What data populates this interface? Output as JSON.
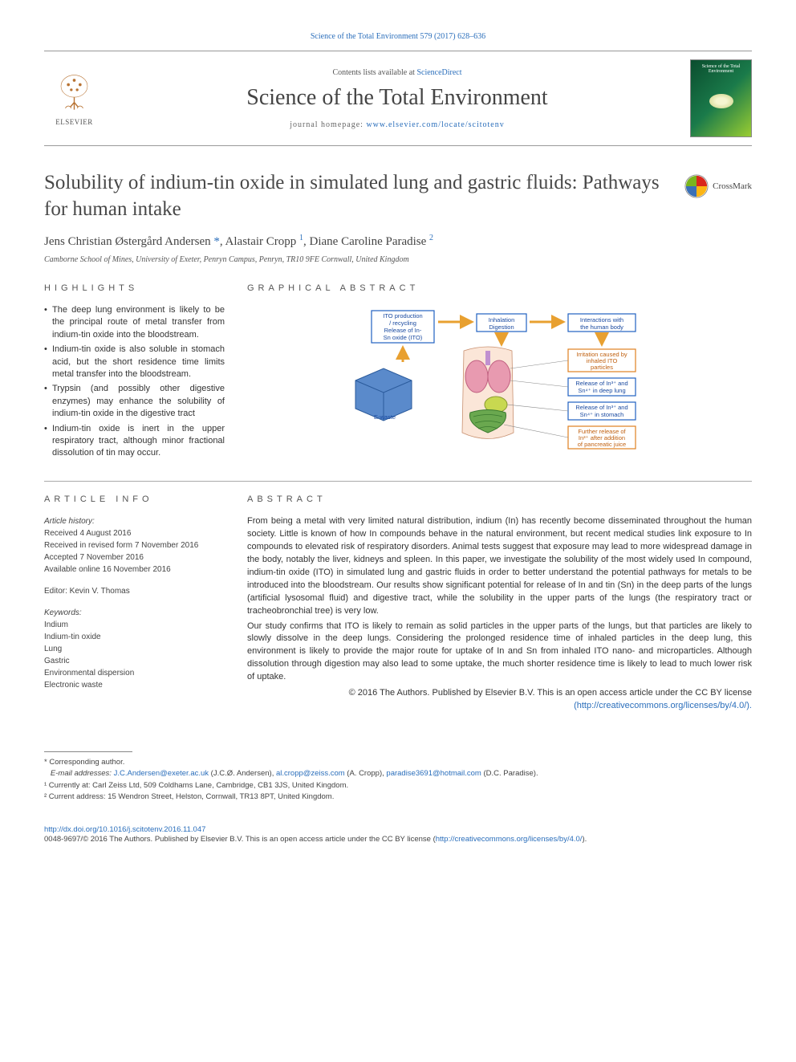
{
  "header": {
    "citation": "Science of the Total Environment 579 (2017) 628–636",
    "contents_prefix": "Contents lists available at ",
    "contents_link": "ScienceDirect",
    "journal": "Science of the Total Environment",
    "homepage_prefix": "journal homepage: ",
    "homepage_url": "www.elsevier.com/locate/scitotenv",
    "publisher": "ELSEVIER",
    "cover_label": "Science of the Total Environment"
  },
  "crossmark": "CrossMark",
  "title": "Solubility of indium-tin oxide in simulated lung and gastric fluids: Pathways for human intake",
  "authors_html": "Jens Christian Østergård Andersen <span class='star'>*</span>, Alastair Cropp <sup>1</sup>, Diane Caroline Paradise <sup>2</sup>",
  "affiliation": "Camborne School of Mines, University of Exeter, Penryn Campus, Penryn, TR10 9FE Cornwall, United Kingdom",
  "sections": {
    "highlights_heading": "HIGHLIGHTS",
    "graphical_heading": "GRAPHICAL ABSTRACT",
    "article_info_heading": "ARTICLE INFO",
    "abstract_heading": "ABSTRACT"
  },
  "highlights": [
    "The deep lung environment is likely to be the principal route of metal transfer from indium-tin oxide into the bloodstream.",
    "Indium-tin oxide is also soluble in stomach acid, but the short residence time limits metal transfer into the bloodstream.",
    "Trypsin (and possibly other digestive enzymes) may enhance the solubility of indium-tin oxide in the digestive tract",
    "Indium-tin oxide is inert in the upper respiratory tract, although minor fractional dissolution of tin may occur."
  ],
  "graphical_abstract": {
    "boxes": {
      "production": [
        "ITO production",
        "/ recycling",
        "Release of In-",
        "Sn oxide (ITO)"
      ],
      "inhalation": [
        "Inhalation",
        "Digestion"
      ],
      "interactions": [
        "Interactions with",
        "the human body"
      ],
      "irritation": [
        "Irritation caused by",
        "inhaled ITO",
        "particles"
      ],
      "release_lung": [
        "Release of In³⁺ and",
        "Sn⁴⁺ in deep lung"
      ],
      "release_stomach": [
        "Release of In³⁺ and",
        "Sn⁴⁺ in stomach"
      ],
      "further": [
        "Further release of",
        "In³⁺ after addition",
        "of pancreatic juice"
      ]
    },
    "organ_labels": [
      "E-waste"
    ],
    "colors": {
      "box_stroke": "#2060c0",
      "box_orange_stroke": "#e08020",
      "text_blue": "#1a4aa0",
      "text_orange": "#c06010",
      "arrow": "#e8a030",
      "lung": "#e89ab0",
      "stomach": "#c8d850",
      "intestine": "#6aa84f",
      "trachea": "#c090d0"
    }
  },
  "article_info": {
    "history_label": "Article history:",
    "history": [
      "Received 4 August 2016",
      "Received in revised form 7 November 2016",
      "Accepted 7 November 2016",
      "Available online 16 November 2016"
    ],
    "editor_label": "Editor: Kevin V. Thomas",
    "keywords_label": "Keywords:",
    "keywords": [
      "Indium",
      "Indium-tin oxide",
      "Lung",
      "Gastric",
      "Environmental dispersion",
      "Electronic waste"
    ]
  },
  "abstract": {
    "p1": "From being a metal with very limited natural distribution, indium (In) has recently become disseminated throughout the human society. Little is known of how In compounds behave in the natural environment, but recent medical studies link exposure to In compounds to elevated risk of respiratory disorders. Animal tests suggest that exposure may lead to more widespread damage in the body, notably the liver, kidneys and spleen. In this paper, we investigate the solubility of the most widely used In compound, indium-tin oxide (ITO) in simulated lung and gastric fluids in order to better understand the potential pathways for metals to be introduced into the bloodstream. Our results show significant potential for release of In and tin (Sn) in the deep parts of the lungs (artificial lysosomal fluid) and digestive tract, while the solubility in the upper parts of the lungs (the respiratory tract or tracheobronchial tree) is very low.",
    "p2": "Our study confirms that ITO is likely to remain as solid particles in the upper parts of the lungs, but that particles are likely to slowly dissolve in the deep lungs. Considering the prolonged residence time of inhaled particles in the deep lung, this environment is likely to provide the major route for uptake of In and Sn from inhaled ITO nano- and microparticles. Although dissolution through digestion may also lead to some uptake, the much shorter residence time is likely to lead to much lower risk of uptake.",
    "copyright": "© 2016 The Authors. Published by Elsevier B.V. This is an open access article under the CC BY license",
    "license_url": "(http://creativecommons.org/licenses/by/4.0/)."
  },
  "footnotes": {
    "corresponding": "* Corresponding author.",
    "emails_label": "E-mail addresses: ",
    "emails": [
      {
        "addr": "J.C.Andersen@exeter.ac.uk",
        "who": " (J.C.Ø. Andersen), "
      },
      {
        "addr": "al.cropp@zeiss.com",
        "who": " (A. Cropp), "
      },
      {
        "addr": "paradise3691@hotmail.com",
        "who": " (D.C. Paradise)."
      }
    ],
    "fn1": "¹ Currently at: Carl Zeiss Ltd, 509 Coldhams Lane, Cambridge, CB1 3JS, United Kingdom.",
    "fn2": "² Current address: 15 Wendron Street, Helston, Cornwall, TR13 8PT, United Kingdom."
  },
  "footer": {
    "doi": "http://dx.doi.org/10.1016/j.scitotenv.2016.11.047",
    "issn_line_a": "0048-9697/© 2016 The Authors. Published by Elsevier B.V. This is an open access article under the CC BY license (",
    "issn_link": "http://creativecommons.org/licenses/by/4.0/",
    "issn_line_b": ")."
  }
}
